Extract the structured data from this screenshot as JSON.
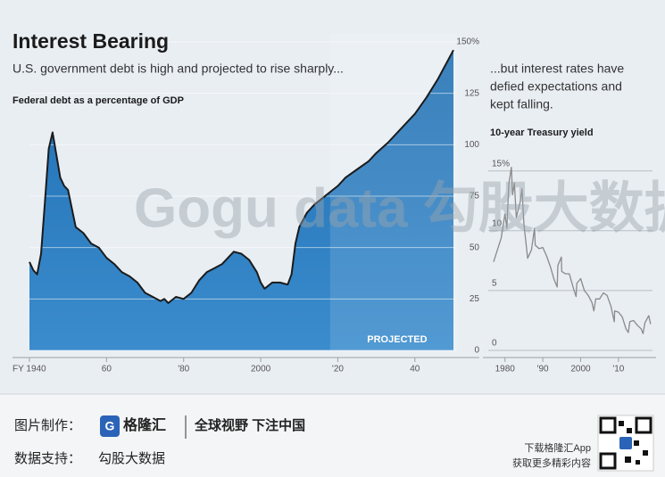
{
  "chart_data": [
    {
      "type": "area",
      "title": "Interest Bearing",
      "subtitle": "U.S. government debt is high and projected to rise sharply...",
      "axis_label": "Federal debt as a percentage of GDP",
      "annotation": "PROJECTED",
      "projection_start": 2018,
      "color": "#2f7fc1",
      "line_color": "#1b1b1b",
      "grid": true,
      "x": [
        1940,
        1941,
        1942,
        1943,
        1944,
        1945,
        1946,
        1947,
        1948,
        1949,
        1950,
        1952,
        1954,
        1956,
        1958,
        1960,
        1962,
        1964,
        1966,
        1968,
        1970,
        1972,
        1974,
        1975,
        1976,
        1978,
        1980,
        1982,
        1984,
        1986,
        1988,
        1990,
        1992,
        1993,
        1995,
        1997,
        1999,
        2000,
        2001,
        2003,
        2005,
        2007,
        2008,
        2009,
        2010,
        2012,
        2014,
        2016,
        2018,
        2020,
        2022,
        2025,
        2028,
        2030,
        2033,
        2036,
        2040,
        2043,
        2046,
        2050
      ],
      "values": [
        43,
        39,
        37,
        47,
        72,
        98,
        106,
        95,
        84,
        80,
        78,
        60,
        57,
        52,
        50,
        45,
        42,
        38,
        36,
        33,
        28,
        26,
        24,
        25,
        23,
        26,
        25,
        28,
        34,
        38,
        40,
        42,
        46,
        48,
        47,
        44,
        38,
        33,
        30,
        33,
        33,
        32,
        37,
        52,
        60,
        67,
        71,
        74,
        77,
        80,
        84,
        88,
        92,
        96,
        101,
        107,
        115,
        123,
        132,
        146
      ],
      "xlim": [
        1940,
        2050
      ],
      "ylim": [
        0,
        150
      ],
      "xticks": [
        {
          "value": 1940,
          "label": "FY 1940"
        },
        {
          "value": 1960,
          "label": "60"
        },
        {
          "value": 1980,
          "label": "'80"
        },
        {
          "value": 2000,
          "label": "2000"
        },
        {
          "value": 2020,
          "label": "'20"
        },
        {
          "value": 2040,
          "label": "40"
        }
      ],
      "yticks": [
        0,
        25,
        50,
        75,
        100,
        125,
        {
          "value": 150,
          "label": "150%"
        }
      ]
    },
    {
      "type": "line",
      "subtitle": [
        "...but interest rates have",
        "defied expectations and",
        "kept falling."
      ],
      "axis_label": "10-year Treasury yield",
      "color": "#8a8a8a",
      "grid": true,
      "x": [
        1977,
        1978,
        1979,
        1980,
        1980.5,
        1981,
        1981.7,
        1982,
        1982.5,
        1983,
        1984,
        1984.5,
        1985,
        1986,
        1987,
        1987.8,
        1988,
        1989,
        1990,
        1991,
        1992,
        1993,
        1993.8,
        1994,
        1994.9,
        1995,
        1996,
        1997,
        1998,
        1998.8,
        1999,
        2000,
        2001,
        2002,
        2003,
        2003.5,
        2004,
        2005,
        2006,
        2007,
        2008,
        2008.9,
        2009,
        2010,
        2011,
        2012,
        2012.6,
        2013,
        2014,
        2015,
        2016,
        2016.5,
        2017,
        2018,
        2018.5
      ],
      "values": [
        7.4,
        8.4,
        9.4,
        11.4,
        10.2,
        13.9,
        15.3,
        13.0,
        14.0,
        11.1,
        12.4,
        13.5,
        10.6,
        7.7,
        8.4,
        10.2,
        8.8,
        8.5,
        8.6,
        7.9,
        7.0,
        5.9,
        5.3,
        7.1,
        7.8,
        6.6,
        6.4,
        6.4,
        5.3,
        4.5,
        5.6,
        6.0,
        5.0,
        4.6,
        4.0,
        3.3,
        4.3,
        4.3,
        4.8,
        4.6,
        3.7,
        2.4,
        3.3,
        3.2,
        2.8,
        1.8,
        1.5,
        2.4,
        2.5,
        2.1,
        1.8,
        1.4,
        2.3,
        2.9,
        2.2
      ],
      "xlim": [
        1977,
        2019
      ],
      "ylim": [
        0,
        15.5
      ],
      "xticks": [
        1980,
        {
          "value": 1990,
          "label": "'90"
        },
        2000,
        {
          "value": 2010,
          "label": "'10"
        }
      ],
      "yticks": [
        0,
        5,
        10,
        {
          "value": 15,
          "label": "15%"
        }
      ]
    }
  ],
  "watermark": "Gogu data 勾股大数据",
  "footer": {
    "made_by_label": "图片制作：",
    "brand": "格隆汇",
    "slogan": "全球视野 下注中国",
    "data_label": "数据支持：",
    "data_source": "勾股大数据",
    "app_line": "下载格隆汇App",
    "app_sub": "获取更多精彩内容"
  }
}
